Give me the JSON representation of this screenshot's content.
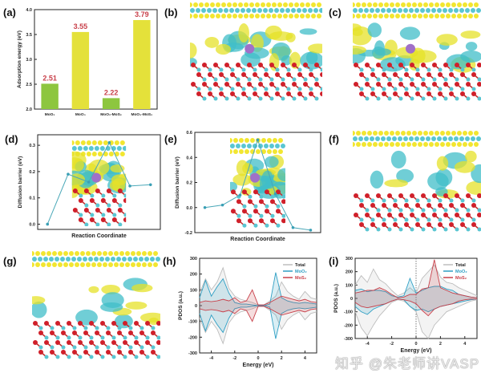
{
  "panel_labels": [
    "(a)",
    "(b)",
    "(c)",
    "(d)",
    "(e)",
    "(f)",
    "(g)",
    "(h)",
    "(i)"
  ],
  "watermark": "知乎 @朱老师讲VASP",
  "colors": {
    "green": "#8dc63f",
    "yellow": "#e4e13a",
    "value_label": "#c8404a",
    "cyan": "#3fb8c8",
    "total": "#bdbdbd",
    "moo2": "#2f9fc4",
    "mos2": "#c8404a",
    "atom_red": "#d0202a",
    "atom_cyan": "#59c6d2",
    "atom_purple": "#a070c8"
  },
  "chart_data": [
    {
      "panel": "a",
      "type": "bar",
      "categories": [
        "MoO₂",
        "MoO₃",
        "MoO₂-MoS₂",
        "MoO₃-MoS₂"
      ],
      "values": [
        2.51,
        3.55,
        2.22,
        3.79
      ],
      "value_labels": [
        "2.51",
        "3.55",
        "2.22",
        "3.79"
      ],
      "bar_colors": [
        "green",
        "yellow",
        "green",
        "yellow"
      ],
      "ylabel": "Adsorption energy (eV)",
      "ylim": [
        2.0,
        4.0
      ],
      "yticks": [
        "2.0",
        "2.5",
        "3.0",
        "3.5",
        "4.0"
      ]
    },
    {
      "panel": "d",
      "type": "line",
      "x": [
        1,
        2,
        3,
        4,
        5,
        6
      ],
      "values": [
        0.0,
        0.19,
        0.16,
        0.31,
        0.145,
        0.15
      ],
      "xlabel": "Reaction Coordinate",
      "ylabel": "Diffusion barrier (eV)",
      "ylim": [
        -0.02,
        0.34
      ],
      "yticks": [
        "0.0",
        "0.1",
        "0.2",
        "0.3"
      ],
      "ytick_values": [
        0,
        0.1,
        0.2,
        0.3
      ]
    },
    {
      "panel": "e",
      "type": "line",
      "x": [
        1,
        2,
        3,
        4,
        5,
        6,
        7
      ],
      "values": [
        0.0,
        0.02,
        0.1,
        0.54,
        0.11,
        -0.16,
        -0.18
      ],
      "xlabel": "Reaction Coordinate",
      "ylabel": "Diffusion barrier (eV)",
      "ylim": [
        -0.2,
        0.6
      ],
      "yticks": [
        "-0.2",
        "0.0",
        "0.2",
        "0.4",
        "0.6"
      ],
      "ytick_values": [
        -0.2,
        0,
        0.2,
        0.4,
        0.6
      ]
    },
    {
      "panel": "h",
      "type": "line",
      "xlabel": "Energy (eV)",
      "ylabel": "PDOS (a.u.)",
      "xlim": [
        -5,
        5
      ],
      "ylim": [
        -300,
        300
      ],
      "xticks": [
        "-4",
        "-2",
        "0",
        "2",
        "4"
      ],
      "xtick_values": [
        -4,
        -2,
        0,
        2,
        4
      ],
      "yticks": [
        "-300",
        "-200",
        "-100",
        "0",
        "100",
        "200",
        "300"
      ],
      "ytick_values": [
        -300,
        -200,
        -100,
        0,
        100,
        200,
        300
      ],
      "legend": "top-right",
      "x": [
        -5,
        -4.5,
        -4,
        -3.5,
        -3,
        -2.5,
        -2,
        -1.5,
        -1,
        -0.5,
        0,
        0.5,
        1,
        1.5,
        2,
        2.5,
        3,
        3.5,
        4,
        4.5,
        5
      ],
      "series": [
        {
          "name": "Total",
          "color": "total",
          "up": [
            80,
            170,
            100,
            150,
            240,
            110,
            60,
            40,
            30,
            20,
            5,
            5,
            30,
            60,
            150,
            90,
            60,
            40,
            90,
            50,
            40
          ],
          "down": [
            -80,
            -170,
            -100,
            -150,
            -240,
            -110,
            -60,
            -40,
            -30,
            -20,
            -5,
            -5,
            -30,
            -60,
            -150,
            -90,
            -60,
            -40,
            -90,
            -50,
            -40
          ]
        },
        {
          "name": "MoO₂",
          "color": "moo2",
          "up": [
            50,
            160,
            60,
            120,
            170,
            80,
            20,
            10,
            10,
            5,
            0,
            0,
            10,
            210,
            50,
            30,
            20,
            15,
            20,
            15,
            10
          ],
          "down": [
            -50,
            -160,
            -60,
            -120,
            -170,
            -80,
            -20,
            -10,
            -10,
            -5,
            0,
            0,
            -10,
            -210,
            -50,
            -30,
            -20,
            -15,
            -20,
            -15,
            -10
          ]
        },
        {
          "name": "MoS₂",
          "color": "mos2",
          "up": [
            20,
            30,
            25,
            30,
            40,
            30,
            50,
            20,
            30,
            100,
            5,
            5,
            20,
            40,
            60,
            50,
            40,
            30,
            40,
            25,
            20
          ],
          "down": [
            -20,
            -30,
            -25,
            -30,
            -40,
            -30,
            -50,
            -20,
            -30,
            -100,
            -5,
            -5,
            -20,
            -40,
            -60,
            -50,
            -40,
            -30,
            -40,
            -25,
            -20
          ]
        }
      ]
    },
    {
      "panel": "i",
      "type": "line",
      "xlabel": "Energy (eV)",
      "ylabel": "PDOS (a.u.)",
      "xlim": [
        -5,
        5
      ],
      "ylim": [
        -300,
        300
      ],
      "xticks": [
        "-4",
        "-2",
        "0",
        "2",
        "4"
      ],
      "xtick_values": [
        -4,
        -2,
        0,
        2,
        4
      ],
      "yticks": [
        "-300",
        "-200",
        "-100",
        "0",
        "100",
        "200",
        "300"
      ],
      "ytick_values": [
        -300,
        -200,
        -100,
        0,
        100,
        200,
        300
      ],
      "legend": "top-right",
      "fermi_line": 0,
      "x": [
        -5,
        -4.5,
        -4,
        -3.5,
        -3,
        -2.5,
        -2,
        -1.5,
        -1,
        -0.5,
        0,
        0.5,
        1,
        1.5,
        2,
        2.5,
        3,
        3.5,
        4,
        4.5,
        5
      ],
      "series": [
        {
          "name": "Total",
          "color": "total",
          "up": [
            100,
            170,
            120,
            220,
            140,
            110,
            60,
            20,
            40,
            80,
            40,
            150,
            200,
            250,
            160,
            120,
            110,
            80,
            60,
            40,
            20
          ],
          "down": [
            -100,
            -220,
            -280,
            -200,
            -130,
            -80,
            -30,
            -10,
            -20,
            -60,
            -100,
            -250,
            -300,
            -200,
            -150,
            -100,
            -80,
            -60,
            -40,
            -20,
            -10
          ]
        },
        {
          "name": "MoO₂",
          "color": "moo2",
          "up": [
            60,
            70,
            50,
            60,
            60,
            50,
            20,
            10,
            20,
            150,
            40,
            60,
            80,
            90,
            90,
            70,
            60,
            30,
            20,
            10,
            5
          ],
          "down": [
            -60,
            -100,
            -120,
            -80,
            -60,
            -40,
            -20,
            -5,
            -10,
            -60,
            -90,
            -80,
            -100,
            -80,
            -60,
            -50,
            -40,
            -30,
            -20,
            -10,
            -5
          ]
        },
        {
          "name": "MoS₂",
          "color": "mos2",
          "up": [
            40,
            50,
            60,
            60,
            80,
            60,
            30,
            5,
            10,
            30,
            30,
            70,
            80,
            290,
            80,
            60,
            40,
            30,
            20,
            10,
            5
          ],
          "down": [
            -30,
            -60,
            -70,
            -60,
            -50,
            -40,
            -20,
            -5,
            -10,
            -20,
            -40,
            -90,
            -130,
            -80,
            -60,
            -50,
            -40,
            -20,
            -10,
            -5,
            -5
          ]
        }
      ]
    }
  ]
}
